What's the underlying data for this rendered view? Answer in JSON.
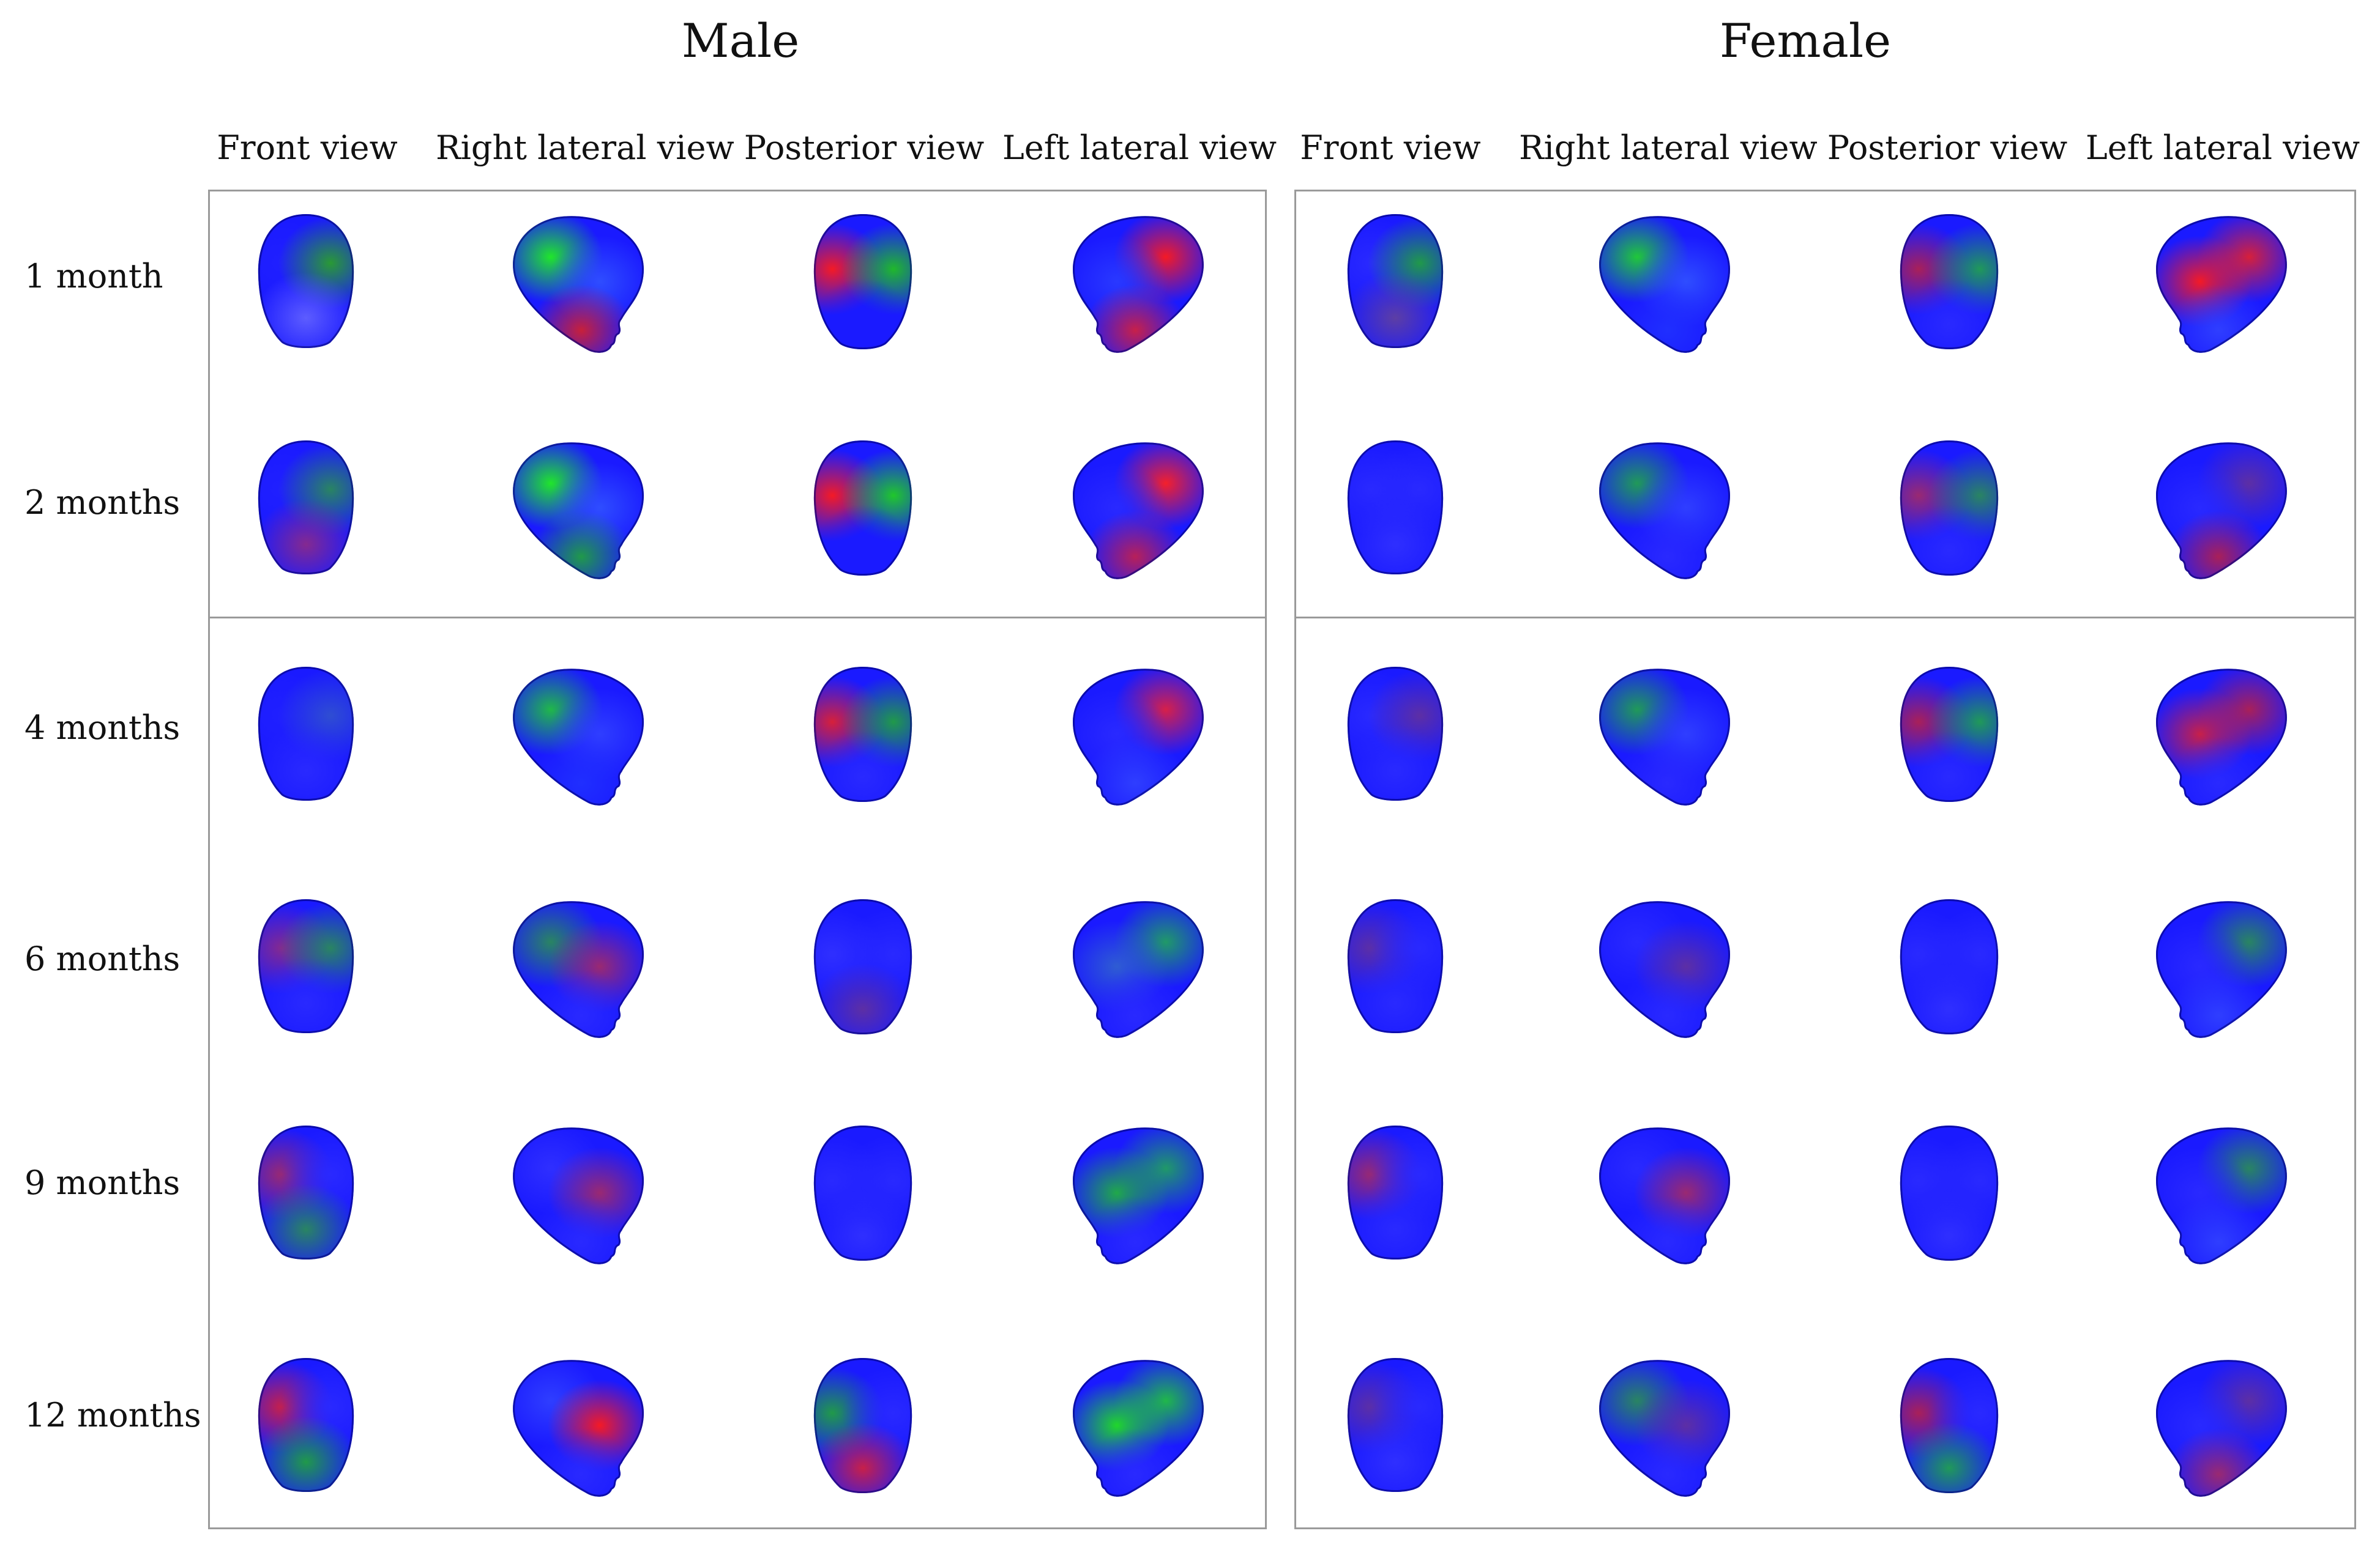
{
  "groups": {
    "male": "Male",
    "female": "Female"
  },
  "views": [
    "Front view",
    "Right lateral view",
    "Posterior view",
    "Left lateral view"
  ],
  "ages": [
    "1 month",
    "2 months",
    "4 months",
    "6 months",
    "9 months",
    "12 months"
  ],
  "colors": {
    "base": "#1a1aff",
    "green": "#18ff18",
    "red": "#ff1414",
    "panel_border": "#9a9a9a"
  },
  "head_maps": {
    "male": [
      [
        [
          "#2020ff",
          "#2aa02a",
          "#6060ff"
        ],
        [
          "#20f020",
          "#3050ff",
          "#d02030"
        ],
        [
          "#ff1a1a",
          "#20c020",
          "#1a1aff"
        ],
        [
          "#ff1a1a",
          "#2a3aff",
          "#d02040"
        ]
      ],
      [
        [
          "#2020ff",
          "#2a8a5a",
          "#8a2a8a"
        ],
        [
          "#20f020",
          "#3050ff",
          "#20a040"
        ],
        [
          "#ff1a1a",
          "#20d020",
          "#1a1aff"
        ],
        [
          "#ff2020",
          "#2a2aff",
          "#c02050"
        ]
      ],
      [
        [
          "#2020ff",
          "#3050d0",
          "#2a2aff"
        ],
        [
          "#20c040",
          "#3040ff",
          "#2030ff"
        ],
        [
          "#e02030",
          "#20a040",
          "#2a2aff"
        ],
        [
          "#e02040",
          "#2a2aff",
          "#3040ff"
        ]
      ],
      [
        [
          "#8a2a8a",
          "#2a8a5a",
          "#2a2aff"
        ],
        [
          "#2a8a5a",
          "#a02a6a",
          "#2a2aff"
        ],
        [
          "#3030ff",
          "#2a2aff",
          "#6030a0"
        ],
        [
          "#20a060",
          "#3060d0",
          "#2a2aff"
        ]
      ],
      [
        [
          "#a02a6a",
          "#2a2aff",
          "#2a8a5a"
        ],
        [
          "#3030ff",
          "#a02a6a",
          "#2a2aff"
        ],
        [
          "#2a2aff",
          "#2a2aff",
          "#3030ff"
        ],
        [
          "#20a060",
          "#20b040",
          "#2a2aff"
        ]
      ],
      [
        [
          "#d02040",
          "#2a2aff",
          "#20a040"
        ],
        [
          "#3040ff",
          "#ff1a1a",
          "#2a2aff"
        ],
        [
          "#20a040",
          "#2a2aff",
          "#d02040"
        ],
        [
          "#20c040",
          "#20e020",
          "#2a2aff"
        ]
      ]
    ],
    "female": [
      [
        [
          "#2a2aff",
          "#20a040",
          "#6040a0"
        ],
        [
          "#20d030",
          "#3050ff",
          "#2030ff"
        ],
        [
          "#b02050",
          "#20a050",
          "#2a2aff"
        ],
        [
          "#e02030",
          "#ff1a1a",
          "#3040ff"
        ]
      ],
      [
        [
          "#2a2aff",
          "#2a2aff",
          "#3030ff"
        ],
        [
          "#20a050",
          "#3040ff",
          "#2a2aff"
        ],
        [
          "#a02a6a",
          "#2a8a5a",
          "#2a2aff"
        ],
        [
          "#6030a0",
          "#2a2aff",
          "#b02050"
        ]
      ],
      [
        [
          "#2a2aff",
          "#6030a0",
          "#2a2aff"
        ],
        [
          "#20a050",
          "#3040ff",
          "#2a2aff"
        ],
        [
          "#b02050",
          "#20a050",
          "#2a2aff"
        ],
        [
          "#b02050",
          "#d02040",
          "#2a2aff"
        ]
      ],
      [
        [
          "#6030a0",
          "#2a2aff",
          "#2a2aff"
        ],
        [
          "#2a2aff",
          "#6030a0",
          "#2a2aff"
        ],
        [
          "#2a2aff",
          "#2a2aff",
          "#3030ff"
        ],
        [
          "#2a8a5a",
          "#2a2aff",
          "#3040ff"
        ]
      ],
      [
        [
          "#a02a6a",
          "#2a2aff",
          "#2a2aff"
        ],
        [
          "#2a2aff",
          "#a02a6a",
          "#2a2aff"
        ],
        [
          "#2a2aff",
          "#2a2aff",
          "#3030ff"
        ],
        [
          "#2a8a5a",
          "#2a2aff",
          "#3040ff"
        ]
      ],
      [
        [
          "#6030a0",
          "#2a2aff",
          "#3030ff"
        ],
        [
          "#2a8a5a",
          "#6030a0",
          "#2a2aff"
        ],
        [
          "#b02050",
          "#2a2aff",
          "#20a050"
        ],
        [
          "#6030a0",
          "#2a2aff",
          "#a02a6a"
        ]
      ]
    ]
  }
}
